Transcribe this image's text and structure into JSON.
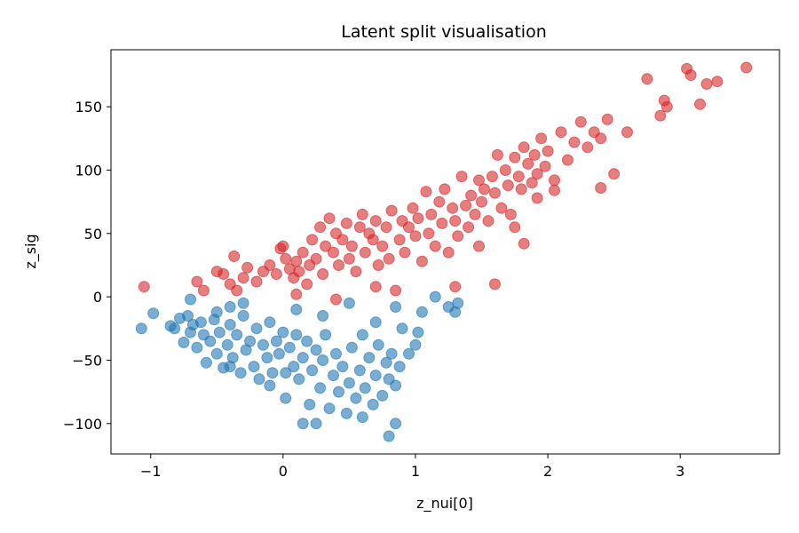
{
  "chart_data": {
    "type": "scatter",
    "title": "Latent split visualisation",
    "xlabel": "z_nui[0]",
    "ylabel": "z_sig",
    "xlim": [
      -1.3,
      3.75
    ],
    "ylim": [
      -124,
      195
    ],
    "xticks": [
      -1,
      0,
      1,
      2,
      3
    ],
    "yticks": [
      -100,
      -50,
      0,
      50,
      100,
      150
    ],
    "grid": false,
    "legend": "none",
    "series": [
      {
        "color": "#d62728",
        "points": [
          [
            -1.05,
            8
          ],
          [
            -0.65,
            12
          ],
          [
            -0.6,
            5
          ],
          [
            -0.5,
            20
          ],
          [
            -0.45,
            18
          ],
          [
            -0.4,
            10
          ],
          [
            -0.37,
            32
          ],
          [
            -0.3,
            15
          ],
          [
            -0.27,
            23
          ],
          [
            -0.2,
            12
          ],
          [
            -0.15,
            20
          ],
          [
            -0.1,
            25
          ],
          [
            -0.05,
            18
          ],
          [
            -0.02,
            38
          ],
          [
            0.0,
            40
          ],
          [
            0.02,
            30
          ],
          [
            0.05,
            22
          ],
          [
            0.08,
            15
          ],
          [
            0.1,
            28
          ],
          [
            0.12,
            20
          ],
          [
            0.15,
            35
          ],
          [
            0.18,
            10
          ],
          [
            0.2,
            25
          ],
          [
            0.22,
            45
          ],
          [
            0.25,
            30
          ],
          [
            0.28,
            55
          ],
          [
            0.3,
            18
          ],
          [
            0.32,
            40
          ],
          [
            0.35,
            62
          ],
          [
            0.38,
            35
          ],
          [
            0.4,
            50
          ],
          [
            0.42,
            25
          ],
          [
            0.45,
            45
          ],
          [
            0.48,
            58
          ],
          [
            0.5,
            30
          ],
          [
            0.52,
            40
          ],
          [
            0.55,
            20
          ],
          [
            0.58,
            55
          ],
          [
            0.6,
            65
          ],
          [
            0.62,
            35
          ],
          [
            0.65,
            50
          ],
          [
            0.68,
            45
          ],
          [
            0.7,
            60
          ],
          [
            0.72,
            25
          ],
          [
            0.75,
            40
          ],
          [
            0.78,
            55
          ],
          [
            0.8,
            30
          ],
          [
            0.82,
            68
          ],
          [
            0.85,
            5
          ],
          [
            0.88,
            45
          ],
          [
            0.9,
            60
          ],
          [
            0.92,
            35
          ],
          [
            0.95,
            55
          ],
          [
            0.98,
            70
          ],
          [
            1.0,
            48
          ],
          [
            1.02,
            62
          ],
          [
            1.05,
            28
          ],
          [
            1.08,
            83
          ],
          [
            1.1,
            50
          ],
          [
            1.12,
            65
          ],
          [
            1.15,
            40
          ],
          [
            1.18,
            75
          ],
          [
            1.2,
            58
          ],
          [
            1.22,
            85
          ],
          [
            1.25,
            35
          ],
          [
            1.28,
            70
          ],
          [
            1.3,
            60
          ],
          [
            1.32,
            48
          ],
          [
            1.35,
            95
          ],
          [
            1.38,
            72
          ],
          [
            1.4,
            55
          ],
          [
            1.42,
            80
          ],
          [
            1.45,
            65
          ],
          [
            1.48,
            92
          ],
          [
            1.5,
            75
          ],
          [
            1.52,
            85
          ],
          [
            1.55,
            60
          ],
          [
            1.58,
            95
          ],
          [
            1.6,
            82
          ],
          [
            1.62,
            112
          ],
          [
            1.65,
            70
          ],
          [
            1.68,
            100
          ],
          [
            1.7,
            88
          ],
          [
            1.72,
            65
          ],
          [
            1.75,
            110
          ],
          [
            1.78,
            95
          ],
          [
            1.8,
            85
          ],
          [
            1.82,
            118
          ],
          [
            1.85,
            105
          ],
          [
            1.88,
            90
          ],
          [
            1.9,
            112
          ],
          [
            1.92,
            97
          ],
          [
            1.95,
            125
          ],
          [
            1.98,
            103
          ],
          [
            2.0,
            115
          ],
          [
            2.05,
            92
          ],
          [
            2.1,
            130
          ],
          [
            2.15,
            108
          ],
          [
            2.2,
            122
          ],
          [
            2.25,
            138
          ],
          [
            2.3,
            118
          ],
          [
            2.35,
            130
          ],
          [
            2.4,
            125
          ],
          [
            2.45,
            140
          ],
          [
            2.5,
            97
          ],
          [
            2.6,
            130
          ],
          [
            2.75,
            172
          ],
          [
            2.85,
            143
          ],
          [
            2.88,
            155
          ],
          [
            2.9,
            150
          ],
          [
            3.05,
            180
          ],
          [
            3.08,
            175
          ],
          [
            3.15,
            152
          ],
          [
            3.2,
            168
          ],
          [
            3.28,
            170
          ],
          [
            3.5,
            181
          ],
          [
            1.6,
            10
          ],
          [
            1.3,
            8
          ],
          [
            1.48,
            40
          ],
          [
            1.82,
            42
          ],
          [
            2.4,
            86
          ],
          [
            2.05,
            84
          ],
          [
            1.75,
            55
          ],
          [
            1.92,
            78
          ],
          [
            0.4,
            -2
          ],
          [
            0.1,
            2
          ],
          [
            -0.35,
            5
          ],
          [
            0.7,
            8
          ]
        ]
      },
      {
        "color": "#1f77b4",
        "points": [
          [
            -1.07,
            -25
          ],
          [
            -0.98,
            -13
          ],
          [
            -0.85,
            -23
          ],
          [
            -0.82,
            -25
          ],
          [
            -0.78,
            -17
          ],
          [
            -0.75,
            -36
          ],
          [
            -0.72,
            -15
          ],
          [
            -0.7,
            -28
          ],
          [
            -0.68,
            -22
          ],
          [
            -0.65,
            -40
          ],
          [
            -0.62,
            -20
          ],
          [
            -0.6,
            -30
          ],
          [
            -0.58,
            -52
          ],
          [
            -0.55,
            -35
          ],
          [
            -0.52,
            -18
          ],
          [
            -0.5,
            -45
          ],
          [
            -0.48,
            -28
          ],
          [
            -0.45,
            -56
          ],
          [
            -0.42,
            -38
          ],
          [
            -0.4,
            -22
          ],
          [
            -0.38,
            -48
          ],
          [
            -0.35,
            -30
          ],
          [
            -0.32,
            -60
          ],
          [
            -0.3,
            -15
          ],
          [
            -0.28,
            -42
          ],
          [
            -0.25,
            -35
          ],
          [
            -0.22,
            -55
          ],
          [
            -0.2,
            -25
          ],
          [
            -0.18,
            -65
          ],
          [
            -0.15,
            -38
          ],
          [
            -0.12,
            -48
          ],
          [
            -0.1,
            -20
          ],
          [
            -0.08,
            -60
          ],
          [
            -0.05,
            -35
          ],
          [
            -0.03,
            -45
          ],
          [
            0.0,
            -28
          ],
          [
            0.02,
            -80
          ],
          [
            0.05,
            -40
          ],
          [
            0.08,
            -55
          ],
          [
            0.1,
            -30
          ],
          [
            0.12,
            -65
          ],
          [
            0.15,
            -48
          ],
          [
            0.18,
            -35
          ],
          [
            0.2,
            -85
          ],
          [
            0.22,
            -58
          ],
          [
            0.25,
            -42
          ],
          [
            0.28,
            -72
          ],
          [
            0.3,
            -50
          ],
          [
            0.32,
            -30
          ],
          [
            0.35,
            -88
          ],
          [
            0.38,
            -62
          ],
          [
            0.4,
            -45
          ],
          [
            0.42,
            -75
          ],
          [
            0.45,
            -55
          ],
          [
            0.48,
            -92
          ],
          [
            0.5,
            -68
          ],
          [
            0.52,
            -40
          ],
          [
            0.55,
            -80
          ],
          [
            0.58,
            -58
          ],
          [
            0.6,
            -95
          ],
          [
            0.62,
            -72
          ],
          [
            0.65,
            -48
          ],
          [
            0.68,
            -85
          ],
          [
            0.7,
            -62
          ],
          [
            0.72,
            -38
          ],
          [
            0.75,
            -78
          ],
          [
            0.78,
            -52
          ],
          [
            0.8,
            -65
          ],
          [
            0.82,
            -45
          ],
          [
            0.85,
            -70
          ],
          [
            0.88,
            -55
          ],
          [
            0.9,
            -25
          ],
          [
            0.95,
            -45
          ],
          [
            1.0,
            -38
          ],
          [
            1.02,
            -28
          ],
          [
            -0.5,
            -12
          ],
          [
            -0.4,
            -8
          ],
          [
            -0.3,
            -5
          ],
          [
            0.1,
            -10
          ],
          [
            0.3,
            -15
          ],
          [
            0.5,
            -5
          ],
          [
            0.85,
            -8
          ],
          [
            1.05,
            -12
          ],
          [
            1.15,
            0
          ],
          [
            1.25,
            -8
          ],
          [
            1.3,
            -12
          ],
          [
            1.32,
            -5
          ],
          [
            0.15,
            -100
          ],
          [
            0.25,
            -100
          ],
          [
            0.8,
            -110
          ],
          [
            0.85,
            -100
          ],
          [
            -0.7,
            -2
          ],
          [
            -0.1,
            -70
          ],
          [
            0.02,
            -60
          ],
          [
            -0.4,
            -55
          ],
          [
            0.6,
            -30
          ],
          [
            0.7,
            -20
          ]
        ]
      }
    ]
  }
}
